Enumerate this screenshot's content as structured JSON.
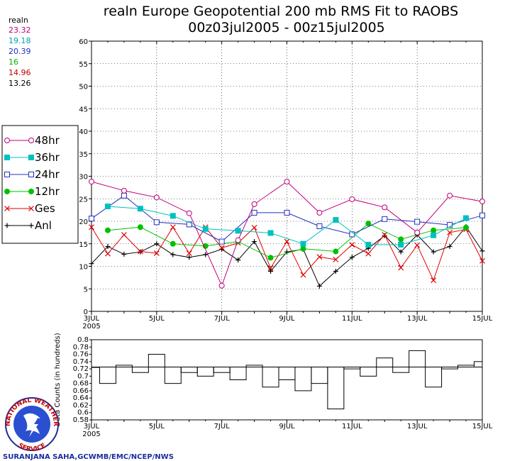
{
  "colors": {
    "48hr": "#c0007a",
    "36hr": "#00c0c0",
    "24hr": "#2030c0",
    "12hr": "#00c000",
    "Ges": "#e00000",
    "Anl": "#000000",
    "credit": "#1a2d9c"
  },
  "stats": {
    "header": "realn",
    "values": [
      {
        "text": "23.32",
        "color": "#c0007a"
      },
      {
        "text": "19.18",
        "color": "#00a0b0"
      },
      {
        "text": "20.39",
        "color": "#2030c0"
      },
      {
        "text": "16",
        "color": "#00b000"
      },
      {
        "text": "14.96",
        "color": "#c00000"
      },
      {
        "text": "13.26",
        "color": "#000000"
      }
    ]
  },
  "credit": "SURANJANA SAHA,GCWMB/EMC/NCEP/NWS",
  "logo": {
    "text": "NATIONAL WEATHER SERVICE"
  },
  "chart_data": [
    {
      "type": "line",
      "title": "realn Europe Geopotential 200 mb RMS Fit to RAOBS",
      "subtitle": "00z03jul2005 - 00z15jul2005",
      "x_ticks": [
        {
          "label": "3JUL",
          "sub": "2005",
          "day": 3
        },
        {
          "label": "5JUL",
          "day": 5
        },
        {
          "label": "7JUL",
          "day": 7
        },
        {
          "label": "9JUL",
          "day": 9
        },
        {
          "label": "11JUL",
          "day": 11
        },
        {
          "label": "13JUL",
          "day": 13
        },
        {
          "label": "15JUL",
          "day": 15
        }
      ],
      "xlim": [
        3,
        15
      ],
      "ylim": [
        0,
        60
      ],
      "y_ticks": [
        0,
        5,
        10,
        15,
        20,
        25,
        30,
        35,
        40,
        45,
        50,
        55,
        60
      ],
      "legend": "left",
      "series": [
        {
          "name": "48hr",
          "marker": "circle-open",
          "x": [
            3,
            4,
            5,
            6,
            7,
            7.5,
            8,
            9,
            10,
            11,
            12,
            13,
            14,
            15
          ],
          "y": [
            28.8,
            26.8,
            25.3,
            21.8,
            5.7,
            15.8,
            23.8,
            28.8,
            21.9,
            24.9,
            23.1,
            17.5,
            25.7,
            24.4
          ]
        },
        {
          "name": "36hr",
          "marker": "square-filled",
          "x": [
            3.5,
            4.5,
            5.5,
            6.5,
            7.5,
            8.5,
            9.5,
            10.5,
            11.5,
            12.5,
            13.5,
            14.5
          ],
          "y": [
            23.3,
            22.8,
            21.2,
            18.3,
            17.9,
            17.4,
            15.0,
            20.3,
            14.8,
            14.8,
            16.9,
            20.7
          ]
        },
        {
          "name": "24hr",
          "marker": "square-open",
          "x": [
            3,
            4,
            5,
            6,
            7,
            8,
            9,
            10,
            11,
            12,
            13,
            14,
            15
          ],
          "y": [
            20.6,
            25.7,
            19.8,
            19.3,
            15.5,
            21.9,
            21.9,
            18.9,
            17.1,
            20.5,
            19.9,
            19.2,
            21.3
          ]
        },
        {
          "name": "12hr",
          "marker": "circle-filled",
          "x": [
            3.5,
            4.5,
            5.5,
            6.5,
            7.5,
            8.5,
            9.5,
            10.5,
            11.5,
            12.5,
            13.5,
            14.5
          ],
          "y": [
            18.0,
            18.7,
            15.0,
            14.5,
            15.5,
            11.9,
            13.9,
            13.3,
            19.5,
            16.0,
            18.0,
            18.6
          ]
        },
        {
          "name": "Ges",
          "marker": "x",
          "x": [
            3,
            3.5,
            4,
            4.5,
            5,
            5.5,
            6,
            6.5,
            7,
            7.5,
            8,
            8.5,
            9,
            9.5,
            10,
            10.5,
            11,
            11.5,
            12,
            12.5,
            13,
            13.5,
            14,
            14.5,
            15
          ],
          "y": [
            18.7,
            12.8,
            17.0,
            13.3,
            12.9,
            18.7,
            12.9,
            18.7,
            14.1,
            15.2,
            18.6,
            9.6,
            15.5,
            8.1,
            12.1,
            11.5,
            14.8,
            12.8,
            17.0,
            9.7,
            14.7,
            6.9,
            17.5,
            18.2,
            11.2
          ]
        },
        {
          "name": "Anl",
          "marker": "plus",
          "x": [
            3,
            3.5,
            4,
            4.5,
            5,
            5.5,
            6,
            6.5,
            7,
            7.5,
            8,
            8.5,
            9,
            9.5,
            10,
            10.5,
            11,
            11.5,
            12,
            12.5,
            13,
            13.5,
            14,
            14.5,
            15
          ],
          "y": [
            10.6,
            14.4,
            12.7,
            13.2,
            15.0,
            12.6,
            12.0,
            12.6,
            13.8,
            11.4,
            15.5,
            8.9,
            13.2,
            13.8,
            5.6,
            8.9,
            12.0,
            14.0,
            16.8,
            13.2,
            17.0,
            13.2,
            14.4,
            18.8,
            13.4
          ]
        }
      ]
    },
    {
      "type": "bar",
      "ylabel": "Data Counts (in hundreds)",
      "ylim": [
        0.58,
        0.8
      ],
      "y_ticks": [
        0.58,
        0.6,
        0.62,
        0.64,
        0.66,
        0.68,
        0.7,
        0.72,
        0.74,
        0.76,
        0.78,
        0.8
      ],
      "y_tick_labels": [
        "0.58",
        "0.6",
        "0.62",
        "0.64",
        "0.66",
        "0.68",
        "0.7",
        "0.72",
        "0.74",
        "0.76",
        "0.78",
        "0.8"
      ],
      "baseline": 0.725,
      "x_ticks": [
        {
          "label": "3JUL",
          "sub": "2005",
          "day": 3
        },
        {
          "label": "5JUL",
          "day": 5
        },
        {
          "label": "7JUL",
          "day": 7
        },
        {
          "label": "9JUL",
          "day": 9
        },
        {
          "label": "11JUL",
          "day": 11
        },
        {
          "label": "13JUL",
          "day": 13
        },
        {
          "label": "15JUL",
          "day": 15
        }
      ],
      "xlim": [
        3,
        15
      ],
      "values": [
        0.725,
        0.68,
        0.73,
        0.71,
        0.76,
        0.68,
        0.71,
        0.7,
        0.71,
        0.69,
        0.73,
        0.67,
        0.69,
        0.66,
        0.68,
        0.61,
        0.72,
        0.7,
        0.75,
        0.71,
        0.77,
        0.67,
        0.72,
        0.73,
        0.74
      ]
    }
  ]
}
